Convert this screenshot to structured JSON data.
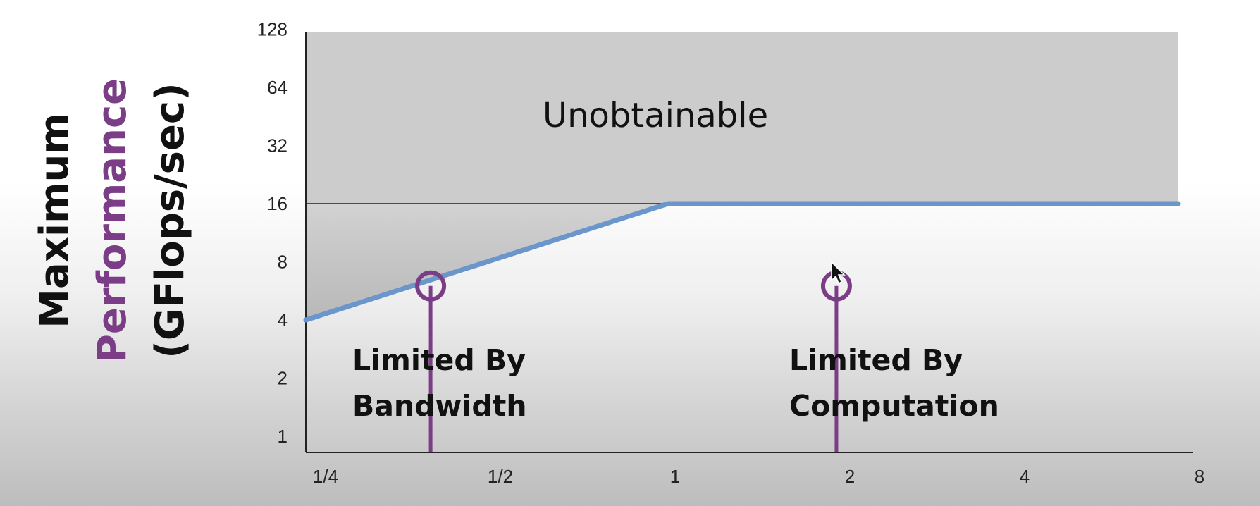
{
  "ylabel": {
    "line1": "Maximum",
    "line2": "Performance",
    "line3": "(GFlops/sec)"
  },
  "regions": {
    "unobtainable": "Unobtainable",
    "bandwidth_line1": "Limited By",
    "bandwidth_line2": "Bandwidth",
    "computation_line1": "Limited By",
    "computation_line2": "Computation"
  },
  "colors": {
    "roofline": "#6b96cc",
    "marker": "#7a3d86",
    "unobtainable_fill": "#cccccc",
    "bandwidth_fill": "#c6c6c6",
    "accent_text": "#7a3d86"
  },
  "chart_data": {
    "type": "line",
    "scale": "log2-log2",
    "xlim": [
      0.25,
      8
    ],
    "ylim": [
      0.75,
      128
    ],
    "x_ticks": [
      {
        "value": 0.25,
        "label": "1/4"
      },
      {
        "value": 0.5,
        "label": "1/2"
      },
      {
        "value": 1,
        "label": "1"
      },
      {
        "value": 2,
        "label": "2"
      },
      {
        "value": 4,
        "label": "4"
      },
      {
        "value": 8,
        "label": "8"
      }
    ],
    "y_ticks": [
      {
        "value": 1,
        "label": "1"
      },
      {
        "value": 2,
        "label": "2"
      },
      {
        "value": 4,
        "label": "4"
      },
      {
        "value": 8,
        "label": "8"
      },
      {
        "value": 16,
        "label": "16"
      },
      {
        "value": 32,
        "label": "32"
      },
      {
        "value": 64,
        "label": "64"
      },
      {
        "value": 128,
        "label": "128"
      }
    ],
    "roofline": {
      "x": [
        0.25,
        1,
        8
      ],
      "y": [
        4,
        16,
        16
      ]
    },
    "peak_performance": 16,
    "markers": [
      {
        "x": 0.39,
        "y": 6
      },
      {
        "x": 1.95,
        "y": 6
      }
    ]
  }
}
